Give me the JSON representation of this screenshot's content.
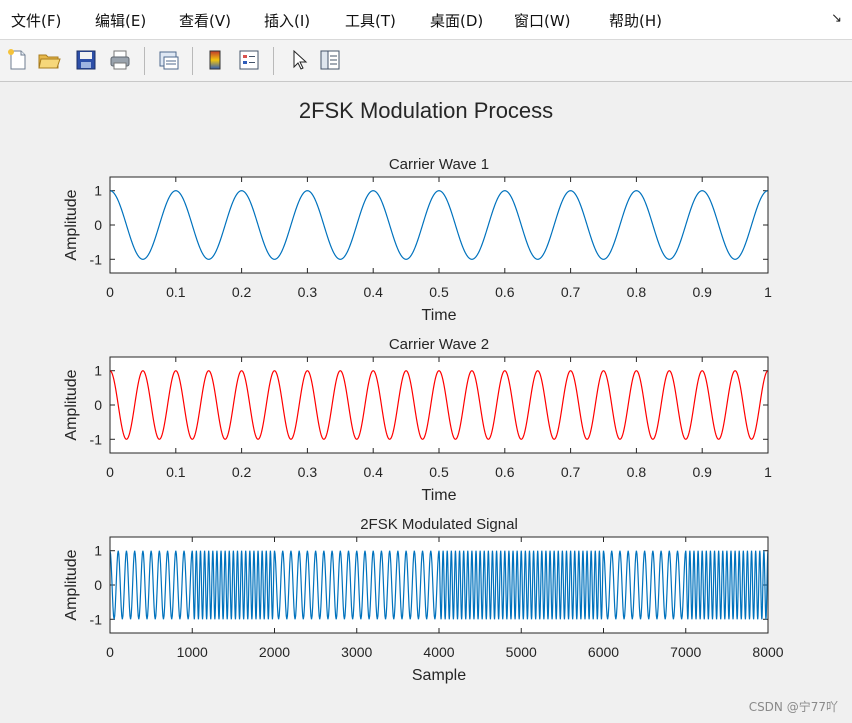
{
  "menu": {
    "items": [
      "文件(F)",
      "编辑(E)",
      "查看(V)",
      "插入(I)",
      "工具(T)",
      "桌面(D)",
      "窗口(W)",
      "帮助(H)"
    ],
    "dock_arrow": "↘"
  },
  "toolbar": {
    "buttons": [
      "new-file",
      "open-folder",
      "save",
      "print",
      "print-preview",
      "colorbar",
      "legend",
      "pointer",
      "property-inspector"
    ]
  },
  "figure": {
    "title": "2FSK Modulation Process"
  },
  "watermark": "CSDN @宁77吖",
  "chart_data": [
    {
      "type": "line",
      "title": "Carrier Wave 1",
      "xlabel": "Time",
      "ylabel": "Amplitude",
      "xlim": [
        0,
        1
      ],
      "ylim": [
        -1.4,
        1.4
      ],
      "xticks": [
        "0",
        "0.1",
        "0.2",
        "0.3",
        "0.4",
        "0.5",
        "0.6",
        "0.7",
        "0.8",
        "0.9",
        "1"
      ],
      "yticks": [
        "-1",
        "0",
        "1"
      ],
      "color": "#0072bd",
      "series": [
        {
          "function": "cos",
          "frequency": 10,
          "amplitude": 1
        }
      ]
    },
    {
      "type": "line",
      "title": "Carrier Wave 2",
      "xlabel": "Time",
      "ylabel": "Amplitude",
      "xlim": [
        0,
        1
      ],
      "ylim": [
        -1.4,
        1.4
      ],
      "xticks": [
        "0",
        "0.1",
        "0.2",
        "0.3",
        "0.4",
        "0.5",
        "0.6",
        "0.7",
        "0.8",
        "0.9",
        "1"
      ],
      "yticks": [
        "-1",
        "0",
        "1"
      ],
      "color": "#ff0000",
      "series": [
        {
          "function": "cos",
          "frequency": 20,
          "amplitude": 1
        }
      ]
    },
    {
      "type": "line",
      "title": "2FSK Modulated Signal",
      "xlabel": "Sample",
      "ylabel": "Amplitude",
      "xlim": [
        0,
        8000
      ],
      "ylim": [
        -1.4,
        1.4
      ],
      "xticks": [
        "0",
        "1000",
        "2000",
        "3000",
        "4000",
        "5000",
        "6000",
        "7000",
        "8000"
      ],
      "yticks": [
        "-1",
        "0",
        "1"
      ],
      "color": "#0072bd",
      "bits": [
        0,
        1,
        0,
        0,
        1,
        1,
        0,
        1
      ],
      "samples_per_bit": 1000,
      "cycles_per_bit_low": 10,
      "cycles_per_bit_high": 20
    }
  ]
}
